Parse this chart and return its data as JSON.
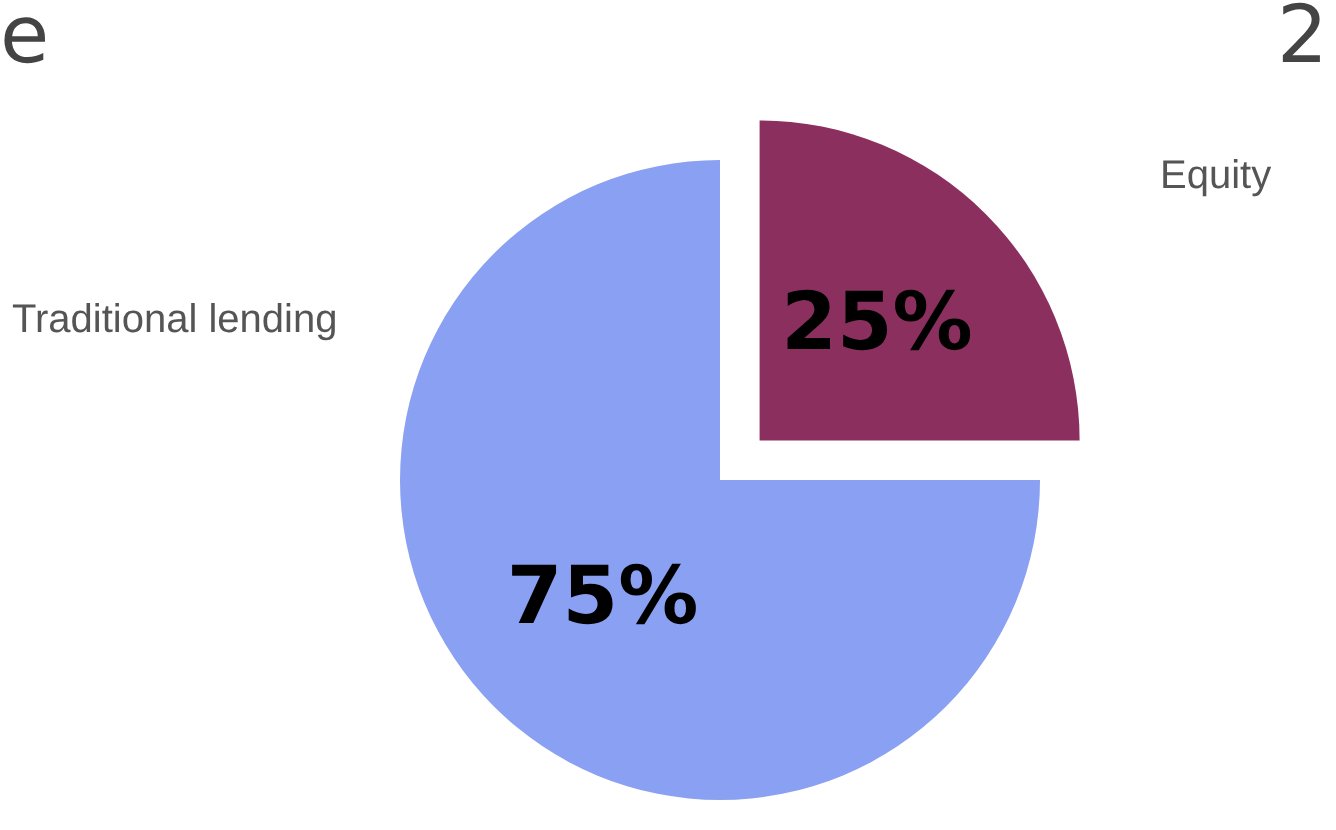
{
  "chart_data": {
    "type": "pie",
    "categories": [
      "Traditional lending",
      "Equity"
    ],
    "values": [
      75,
      25
    ],
    "colors": [
      "#8aa0f2",
      "#8b2f5e"
    ],
    "value_labels": [
      "75%",
      "25%"
    ],
    "annotations": [
      "e",
      "2"
    ]
  }
}
